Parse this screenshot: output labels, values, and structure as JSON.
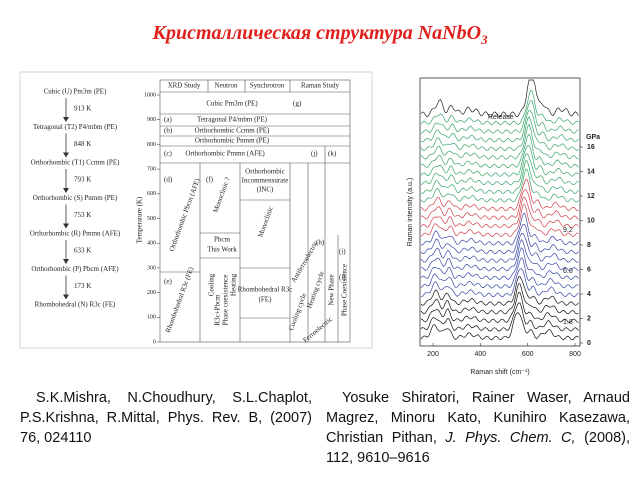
{
  "title": {
    "text": "Кристаллическая структура NaNbO",
    "subscript": "3"
  },
  "left_figure": {
    "phases": [
      {
        "name": "Cubic (U) Pm3m (PE)",
        "transition": "913 K"
      },
      {
        "name": "Tetragonal (T2) P4/mbm (PE)",
        "transition": "848 K"
      },
      {
        "name": "Orthorhombic (T1) Ccmm (PE)",
        "transition": "793 K"
      },
      {
        "name": "Orthorhombic (S) Pnmm (PE)",
        "transition": "753 K"
      },
      {
        "name": "Orthorhombic (R) Pmmn (AFE)",
        "transition": "633 K"
      },
      {
        "name": "Orthorhombic (P) Pbcm (AFE)",
        "transition": "173 K"
      },
      {
        "name": "Rhombohedral (N) R3c (FE)"
      }
    ],
    "columns": [
      "XRD Study",
      "Neutron",
      "Synchrotron",
      "Raman Study"
    ],
    "y_axis_label": "Temperature (K)",
    "yticks": [
      0,
      100,
      200,
      300,
      400,
      500,
      600,
      700,
      800,
      900,
      1000
    ],
    "chart_labels": [
      "Cubic Pm3m (PE)",
      "Tetragonal P4/mbm (PE)",
      "Orthorhombic Ccmm (PE)",
      "Orthorhombic Pnmm (PE)",
      "Orthorhombic Pmmn (AFE)",
      "Orthorhombic Pbcm (AFE)",
      "Monoclinic ?",
      "Orthorhombic",
      "Incommensurate",
      "(INC)",
      "Monoclinic",
      "Pbcm",
      "This Work",
      "Rhombohedral R3c (FE)",
      "Rhombohedral R3c",
      "(FE)",
      "Cooling",
      "Heating",
      "Phase coexistence",
      "R3c+Pbcm",
      "Antiferroelectric",
      "Cooling cycle",
      "Heating cycle",
      "Ferroelectric",
      "New Phase",
      "Phase Coexistence"
    ],
    "letters": [
      "(a)",
      "(b)",
      "(c)",
      "(d)",
      "(e)",
      "(f)",
      "(g)",
      "(h)",
      "(i)",
      "(j)",
      "(k)",
      "(l)"
    ]
  },
  "right_figure": {
    "label": "Release",
    "unit": "GPa",
    "pressure_ticks": [
      0,
      2,
      4,
      6,
      8,
      10,
      12,
      14,
      16
    ],
    "xticks": [
      200,
      400,
      600,
      800
    ],
    "x_axis_label": "Raman shift (cm⁻¹)",
    "y_axis_label": "Raman intensity (a.u.)",
    "annotations": [
      "9.2",
      "6.0",
      "1.8"
    ]
  },
  "captions": {
    "left": "S.K.Mishra, N.Choudhury, S.L.Chaplot, P.S.Krishna, R.Mittal, Phys. Rev. B, (2007) 76, 024110",
    "right": {
      "authors": "Yosuke Shiratori, Rainer Waser, Arnaud Magrez, Minoru Kato, Kunihiro Kasezawa, Christian Pithan,",
      "journal": "J. Phys. Chem. C,",
      "details": "(2008), 112, 9610–9616"
    }
  }
}
